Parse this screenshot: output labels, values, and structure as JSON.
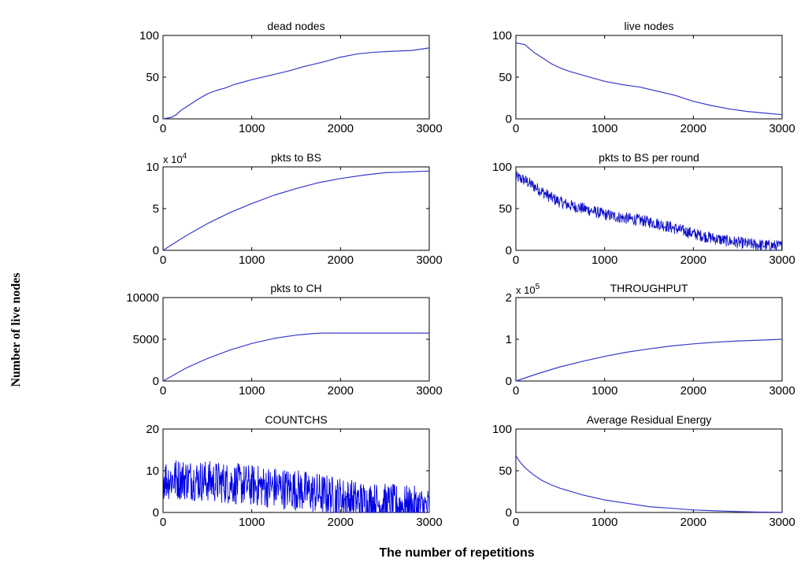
{
  "figure": {
    "ylabel": "Number of live nodes",
    "xlabel": "The number of repetitions"
  },
  "chart_data": [
    {
      "type": "line",
      "title": "dead nodes",
      "xlim": [
        0,
        3000
      ],
      "ylim": [
        0,
        100
      ],
      "xticks": [
        "0",
        "1000",
        "2000",
        "3000"
      ],
      "yticks": [
        "0",
        "50",
        "100"
      ],
      "exponent": "",
      "color": "#3a3acd",
      "noise": 0,
      "x": [
        0,
        100,
        150,
        200,
        300,
        400,
        500,
        600,
        700,
        800,
        1000,
        1200,
        1400,
        1600,
        1800,
        2000,
        2200,
        2400,
        2600,
        2800,
        3000
      ],
      "y": [
        0,
        2,
        5,
        10,
        17,
        24,
        30,
        34,
        37,
        41,
        47,
        52,
        57,
        63,
        68,
        74,
        78,
        80,
        81,
        82,
        85
      ]
    },
    {
      "type": "line",
      "title": "live nodes",
      "xlim": [
        0,
        3000
      ],
      "ylim": [
        0,
        100
      ],
      "xticks": [
        "0",
        "1000",
        "2000",
        "3000"
      ],
      "yticks": [
        "0",
        "50",
        "100"
      ],
      "exponent": "",
      "color": "#3a3acd",
      "noise": 0,
      "x": [
        0,
        100,
        200,
        300,
        400,
        500,
        600,
        800,
        1000,
        1200,
        1400,
        1600,
        1800,
        2000,
        2200,
        2400,
        2600,
        2800,
        3000
      ],
      "y": [
        91,
        89,
        80,
        73,
        66,
        61,
        57,
        51,
        45,
        41,
        38,
        33,
        28,
        21,
        16,
        12,
        9,
        7,
        5
      ]
    },
    {
      "type": "line",
      "title": "pkts to BS",
      "xlim": [
        0,
        3000
      ],
      "ylim": [
        0,
        10
      ],
      "xticks": [
        "0",
        "1000",
        "2000",
        "3000"
      ],
      "yticks": [
        "0",
        "5",
        "10"
      ],
      "exponent": "4",
      "color": "#3a3acd",
      "noise": 0,
      "x": [
        0,
        250,
        500,
        750,
        1000,
        1250,
        1500,
        1750,
        2000,
        2250,
        2500,
        2750,
        3000
      ],
      "y": [
        0,
        1.7,
        3.2,
        4.5,
        5.6,
        6.6,
        7.4,
        8.1,
        8.6,
        9.0,
        9.3,
        9.4,
        9.5
      ]
    },
    {
      "type": "line",
      "title": "pkts to BS per round",
      "xlim": [
        0,
        3000
      ],
      "ylim": [
        0,
        100
      ],
      "xticks": [
        "0",
        "1000",
        "2000",
        "3000"
      ],
      "yticks": [
        "0",
        "50",
        "100"
      ],
      "exponent": "",
      "color": "#1010c8",
      "noise": 7,
      "x": [
        0,
        100,
        200,
        300,
        400,
        500,
        600,
        800,
        1000,
        1200,
        1400,
        1600,
        1800,
        2000,
        2200,
        2400,
        2600,
        2800,
        3000
      ],
      "y": [
        88,
        84,
        77,
        70,
        63,
        58,
        54,
        49,
        43,
        39,
        36,
        32,
        26,
        20,
        15,
        11,
        8,
        6,
        5
      ]
    },
    {
      "type": "line",
      "title": "pkts to CH",
      "xlim": [
        0,
        3000
      ],
      "ylim": [
        0,
        10000
      ],
      "xticks": [
        "0",
        "1000",
        "2000",
        "3000"
      ],
      "yticks": [
        "0",
        "5000",
        "10000"
      ],
      "exponent": "",
      "color": "#3a3acd",
      "noise": 0,
      "x": [
        0,
        250,
        500,
        750,
        1000,
        1250,
        1500,
        1700,
        1800,
        2000,
        2500,
        3000
      ],
      "y": [
        0,
        1500,
        2700,
        3700,
        4500,
        5100,
        5500,
        5700,
        5750,
        5750,
        5750,
        5750
      ]
    },
    {
      "type": "line",
      "title": "THROUGHPUT",
      "xlim": [
        0,
        3000
      ],
      "ylim": [
        0,
        2
      ],
      "xticks": [
        "0",
        "1000",
        "2000",
        "3000"
      ],
      "yticks": [
        "0",
        "1",
        "2"
      ],
      "exponent": "5",
      "color": "#3a3acd",
      "noise": 0,
      "x": [
        0,
        250,
        500,
        750,
        1000,
        1250,
        1500,
        1750,
        2000,
        2250,
        2500,
        2750,
        3000
      ],
      "y": [
        0,
        0.18,
        0.34,
        0.47,
        0.59,
        0.69,
        0.77,
        0.84,
        0.89,
        0.93,
        0.96,
        0.98,
        1.0
      ]
    },
    {
      "type": "line",
      "title": "COUNTCHS",
      "xlim": [
        0,
        3000
      ],
      "ylim": [
        0,
        20
      ],
      "xticks": [
        "0",
        "1000",
        "2000",
        "3000"
      ],
      "yticks": [
        "0",
        "10",
        "20"
      ],
      "exponent": "",
      "color": "#0000e6",
      "noise": 5,
      "x": [
        0,
        250,
        500,
        750,
        1000,
        1250,
        1500,
        1750,
        2000,
        2250,
        2500,
        2750,
        3000
      ],
      "y": [
        8,
        8,
        7.5,
        7,
        6.5,
        6,
        5.5,
        4.5,
        3.5,
        2.5,
        2,
        1.5,
        1
      ]
    },
    {
      "type": "line",
      "title": "Average Residual Energy",
      "xlim": [
        0,
        3000
      ],
      "ylim": [
        0,
        100
      ],
      "xticks": [
        "0",
        "1000",
        "2000",
        "3000"
      ],
      "yticks": [
        "0",
        "50",
        "100"
      ],
      "exponent": "",
      "color": "#3a3acd",
      "noise": 0,
      "x": [
        0,
        50,
        100,
        200,
        300,
        400,
        500,
        750,
        1000,
        1250,
        1500,
        1750,
        2000,
        2250,
        2500,
        2750,
        3000
      ],
      "y": [
        68,
        60,
        54,
        45,
        38,
        33,
        29,
        21,
        15,
        11,
        7,
        5,
        3,
        2,
        1,
        0.5,
        0.3
      ]
    }
  ]
}
